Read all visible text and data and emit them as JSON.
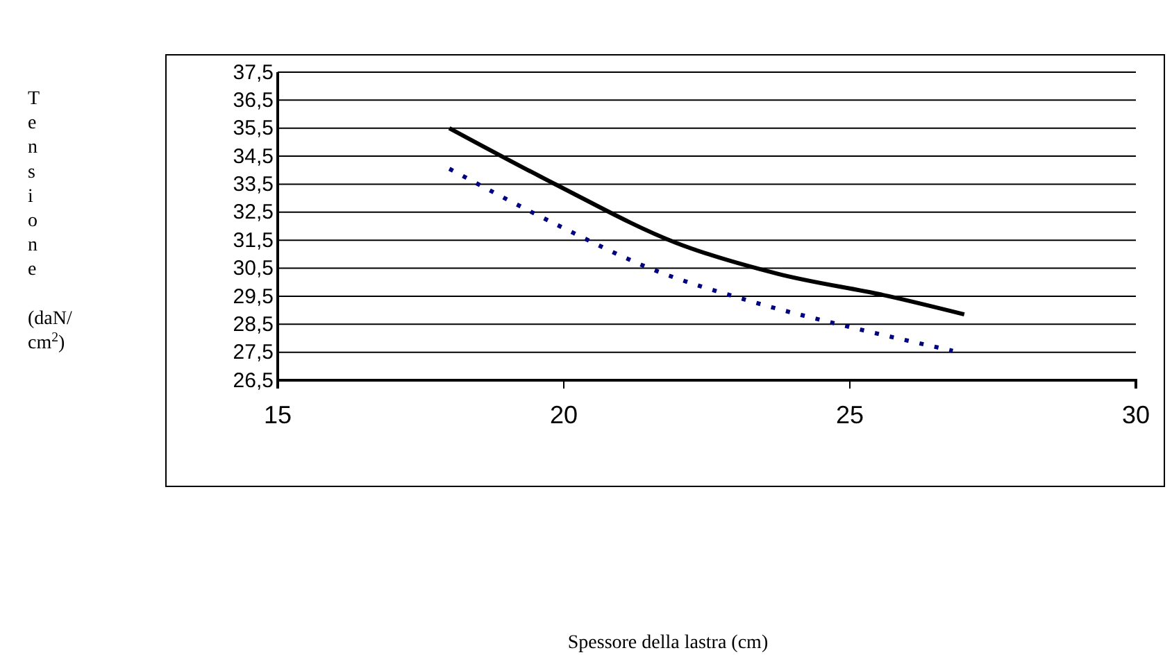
{
  "chart_data": {
    "type": "line",
    "annotations": [
      "Spessore della lastra (cm)"
    ],
    "ylabel": "Tensione (daN/cm$^{2}$)",
    "xlim": [
      15,
      30
    ],
    "xticks": [
      15,
      20,
      25,
      30
    ],
    "ylim": [
      26.5,
      37.5
    ],
    "yticks": [
      {
        "value": 26.5,
        "label": "26,5"
      },
      {
        "value": 27.5,
        "label": "27,5"
      },
      {
        "value": 28.5,
        "label": "28,5"
      },
      {
        "value": 29.5,
        "label": "29,5"
      },
      {
        "value": 30.5,
        "label": "30,5"
      },
      {
        "value": 31.5,
        "label": "31,5"
      },
      {
        "value": 32.5,
        "label": "32,5"
      },
      {
        "value": 33.5,
        "label": "33,5"
      },
      {
        "value": 34.5,
        "label": "34,5"
      },
      {
        "value": 35.5,
        "label": "35,5"
      },
      {
        "value": 36.5,
        "label": "36,5"
      },
      {
        "value": 37.5,
        "label": "37,5"
      }
    ],
    "grid": "y",
    "series": [
      {
        "color": "#000000",
        "line_style": "solid",
        "x": [
          18,
          19.85,
          21.97,
          23.74,
          25.68,
          27
        ],
        "values": [
          35.5,
          33.5,
          31.4,
          30.3,
          29.5,
          28.85
        ]
      },
      {
        "color": "#000080",
        "line_style": "dotted",
        "x": [
          18,
          19.93,
          21.5,
          23.3,
          25,
          26.8
        ],
        "values": [
          34.05,
          32,
          30.5,
          29.3,
          28.4,
          27.55
        ]
      }
    ]
  }
}
